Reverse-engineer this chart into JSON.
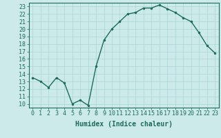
{
  "x": [
    0,
    1,
    2,
    3,
    4,
    5,
    6,
    7,
    8,
    9,
    10,
    11,
    12,
    13,
    14,
    15,
    16,
    17,
    18,
    19,
    20,
    21,
    22,
    23
  ],
  "y": [
    13.5,
    13.0,
    12.2,
    13.5,
    12.8,
    10.0,
    10.5,
    9.8,
    15.0,
    18.5,
    20.0,
    21.0,
    22.0,
    22.2,
    22.8,
    22.8,
    23.2,
    22.7,
    22.2,
    21.5,
    21.0,
    19.5,
    17.8,
    16.8
  ],
  "line_color": "#1a6b5a",
  "marker": "o",
  "marker_size": 2,
  "line_width": 1.0,
  "xlabel": "Humidex (Indice chaleur)",
  "xlabel_fontsize": 7,
  "tick_fontsize": 6,
  "xlim": [
    -0.5,
    23.5
  ],
  "ylim": [
    9.5,
    23.5
  ],
  "yticks": [
    10,
    11,
    12,
    13,
    14,
    15,
    16,
    17,
    18,
    19,
    20,
    21,
    22,
    23
  ],
  "xticks": [
    0,
    1,
    2,
    3,
    4,
    5,
    6,
    7,
    8,
    9,
    10,
    11,
    12,
    13,
    14,
    15,
    16,
    17,
    18,
    19,
    20,
    21,
    22,
    23
  ],
  "bg_color": "#cceaea",
  "grid_color": "#aad4d4",
  "axes_color": "#1a6b5a"
}
